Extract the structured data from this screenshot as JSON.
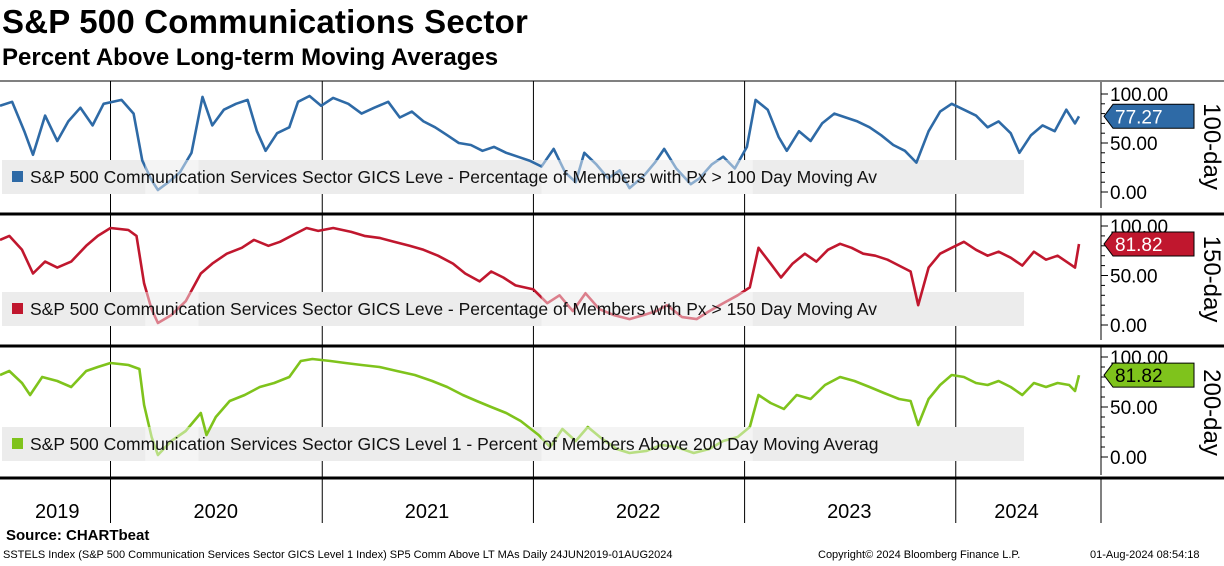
{
  "title": "S&P 500 Communications Sector",
  "subtitle": "Percent Above Long-term Moving Averages",
  "source": "Source: CHARTbeat",
  "footer": {
    "left": "SSTELS Index (S&P 500 Communication Services Sector GICS Level 1 Index) SP5 Comm Above LT MAs  Daily 24JUN2019-01AUG2024",
    "middle": "Copyright© 2024 Bloomberg Finance L.P.",
    "right": "01-Aug-2024 08:54:18"
  },
  "chart_data": {
    "type": "line",
    "x_range": [
      "2019-06-24",
      "2024-08-01"
    ],
    "x_tick_labels": [
      "2019",
      "2020",
      "2021",
      "2022",
      "2023",
      "2024"
    ],
    "panels": [
      {
        "side_label": "100-day",
        "legend": "S&P 500 Communication Services Sector GICS Leve - Percentage of Members with Px > 100 Day Moving Av",
        "color": "#2e6aa6",
        "last_value": 77.27,
        "last_label": "77.27",
        "y_range": [
          0,
          100
        ],
        "y_ticks": [
          "100.00",
          "50.00",
          "0.00"
        ],
        "series": [
          [
            "2019-06-24",
            88
          ],
          [
            "2019-07-15",
            92
          ],
          [
            "2019-08-05",
            62
          ],
          [
            "2019-08-20",
            38
          ],
          [
            "2019-09-10",
            78
          ],
          [
            "2019-10-01",
            52
          ],
          [
            "2019-10-20",
            72
          ],
          [
            "2019-11-10",
            86
          ],
          [
            "2019-12-01",
            68
          ],
          [
            "2019-12-20",
            90
          ],
          [
            "2020-01-20",
            94
          ],
          [
            "2020-02-10",
            80
          ],
          [
            "2020-02-25",
            32
          ],
          [
            "2020-03-12",
            12
          ],
          [
            "2020-03-23",
            2
          ],
          [
            "2020-04-10",
            10
          ],
          [
            "2020-04-30",
            20
          ],
          [
            "2020-05-20",
            40
          ],
          [
            "2020-06-08",
            97
          ],
          [
            "2020-06-25",
            68
          ],
          [
            "2020-07-15",
            84
          ],
          [
            "2020-08-05",
            90
          ],
          [
            "2020-08-25",
            94
          ],
          [
            "2020-09-10",
            62
          ],
          [
            "2020-09-25",
            42
          ],
          [
            "2020-10-15",
            60
          ],
          [
            "2020-11-05",
            66
          ],
          [
            "2020-11-20",
            92
          ],
          [
            "2020-12-10",
            98
          ],
          [
            "2020-12-30",
            88
          ],
          [
            "2021-01-20",
            96
          ],
          [
            "2021-02-15",
            90
          ],
          [
            "2021-03-10",
            80
          ],
          [
            "2021-04-01",
            86
          ],
          [
            "2021-04-25",
            92
          ],
          [
            "2021-05-15",
            76
          ],
          [
            "2021-06-05",
            82
          ],
          [
            "2021-06-25",
            72
          ],
          [
            "2021-07-15",
            66
          ],
          [
            "2021-08-05",
            58
          ],
          [
            "2021-08-25",
            50
          ],
          [
            "2021-09-15",
            48
          ],
          [
            "2021-10-05",
            42
          ],
          [
            "2021-10-25",
            46
          ],
          [
            "2021-11-15",
            40
          ],
          [
            "2021-12-05",
            36
          ],
          [
            "2021-12-25",
            32
          ],
          [
            "2022-01-15",
            26
          ],
          [
            "2022-02-05",
            44
          ],
          [
            "2022-02-25",
            20
          ],
          [
            "2022-03-15",
            10
          ],
          [
            "2022-03-30",
            40
          ],
          [
            "2022-04-20",
            28
          ],
          [
            "2022-05-10",
            14
          ],
          [
            "2022-05-30",
            22
          ],
          [
            "2022-06-16",
            4
          ],
          [
            "2022-07-10",
            16
          ],
          [
            "2022-07-30",
            30
          ],
          [
            "2022-08-15",
            44
          ],
          [
            "2022-09-05",
            24
          ],
          [
            "2022-09-30",
            8
          ],
          [
            "2022-10-15",
            14
          ],
          [
            "2022-11-05",
            28
          ],
          [
            "2022-11-25",
            36
          ],
          [
            "2022-12-15",
            24
          ],
          [
            "2023-01-05",
            46
          ],
          [
            "2023-01-20",
            94
          ],
          [
            "2023-02-10",
            84
          ],
          [
            "2023-03-01",
            56
          ],
          [
            "2023-03-15",
            42
          ],
          [
            "2023-04-05",
            62
          ],
          [
            "2023-04-25",
            52
          ],
          [
            "2023-05-15",
            70
          ],
          [
            "2023-06-05",
            80
          ],
          [
            "2023-06-25",
            76
          ],
          [
            "2023-07-15",
            72
          ],
          [
            "2023-08-05",
            66
          ],
          [
            "2023-08-25",
            58
          ],
          [
            "2023-09-15",
            48
          ],
          [
            "2023-10-05",
            42
          ],
          [
            "2023-10-25",
            30
          ],
          [
            "2023-11-15",
            62
          ],
          [
            "2023-12-05",
            82
          ],
          [
            "2023-12-25",
            90
          ],
          [
            "2024-01-15",
            84
          ],
          [
            "2024-02-05",
            78
          ],
          [
            "2024-02-25",
            66
          ],
          [
            "2024-03-15",
            72
          ],
          [
            "2024-04-05",
            60
          ],
          [
            "2024-04-20",
            40
          ],
          [
            "2024-05-10",
            58
          ],
          [
            "2024-05-30",
            68
          ],
          [
            "2024-06-20",
            62
          ],
          [
            "2024-07-10",
            84
          ],
          [
            "2024-07-25",
            70
          ],
          [
            "2024-08-01",
            77.27
          ]
        ]
      },
      {
        "side_label": "150-day",
        "legend": "S&P 500 Communication Services Sector GICS Leve - Percentage of Members with Px > 150 Day Moving Av",
        "color": "#c0172e",
        "last_value": 81.82,
        "last_label": "81.82",
        "y_range": [
          0,
          100
        ],
        "y_ticks": [
          "100.00",
          "50.00",
          "0.00"
        ],
        "series": [
          [
            "2019-06-24",
            86
          ],
          [
            "2019-07-10",
            90
          ],
          [
            "2019-08-01",
            76
          ],
          [
            "2019-08-20",
            52
          ],
          [
            "2019-09-10",
            64
          ],
          [
            "2019-10-01",
            58
          ],
          [
            "2019-10-25",
            64
          ],
          [
            "2019-11-20",
            80
          ],
          [
            "2019-12-10",
            90
          ],
          [
            "2020-01-01",
            98
          ],
          [
            "2020-02-01",
            96
          ],
          [
            "2020-02-15",
            90
          ],
          [
            "2020-02-28",
            42
          ],
          [
            "2020-03-12",
            16
          ],
          [
            "2020-03-23",
            2
          ],
          [
            "2020-04-15",
            10
          ],
          [
            "2020-05-10",
            24
          ],
          [
            "2020-06-05",
            52
          ],
          [
            "2020-06-25",
            62
          ],
          [
            "2020-07-20",
            72
          ],
          [
            "2020-08-15",
            78
          ],
          [
            "2020-09-05",
            86
          ],
          [
            "2020-09-30",
            80
          ],
          [
            "2020-10-20",
            84
          ],
          [
            "2020-11-15",
            92
          ],
          [
            "2020-12-05",
            98
          ],
          [
            "2020-12-25",
            95
          ],
          [
            "2021-01-20",
            98
          ],
          [
            "2021-02-20",
            94
          ],
          [
            "2021-03-15",
            90
          ],
          [
            "2021-04-10",
            88
          ],
          [
            "2021-05-05",
            84
          ],
          [
            "2021-06-01",
            80
          ],
          [
            "2021-06-25",
            76
          ],
          [
            "2021-07-20",
            70
          ],
          [
            "2021-08-15",
            62
          ],
          [
            "2021-09-05",
            52
          ],
          [
            "2021-09-30",
            44
          ],
          [
            "2021-10-20",
            54
          ],
          [
            "2021-11-10",
            48
          ],
          [
            "2021-12-01",
            40
          ],
          [
            "2022-01-01",
            36
          ],
          [
            "2022-01-25",
            22
          ],
          [
            "2022-02-15",
            30
          ],
          [
            "2022-03-10",
            14
          ],
          [
            "2022-04-01",
            32
          ],
          [
            "2022-04-25",
            16
          ],
          [
            "2022-05-20",
            10
          ],
          [
            "2022-06-16",
            6
          ],
          [
            "2022-07-10",
            10
          ],
          [
            "2022-08-01",
            14
          ],
          [
            "2022-08-20",
            20
          ],
          [
            "2022-09-15",
            8
          ],
          [
            "2022-10-10",
            6
          ],
          [
            "2022-11-01",
            14
          ],
          [
            "2022-11-25",
            22
          ],
          [
            "2022-12-20",
            30
          ],
          [
            "2023-01-10",
            38
          ],
          [
            "2023-01-25",
            78
          ],
          [
            "2023-02-15",
            62
          ],
          [
            "2023-03-05",
            48
          ],
          [
            "2023-03-25",
            62
          ],
          [
            "2023-04-15",
            72
          ],
          [
            "2023-05-05",
            64
          ],
          [
            "2023-05-25",
            76
          ],
          [
            "2023-06-15",
            82
          ],
          [
            "2023-07-05",
            78
          ],
          [
            "2023-07-25",
            72
          ],
          [
            "2023-08-15",
            70
          ],
          [
            "2023-09-05",
            66
          ],
          [
            "2023-09-25",
            60
          ],
          [
            "2023-10-15",
            54
          ],
          [
            "2023-10-28",
            20
          ],
          [
            "2023-11-15",
            58
          ],
          [
            "2023-12-05",
            72
          ],
          [
            "2023-12-25",
            78
          ],
          [
            "2024-01-15",
            84
          ],
          [
            "2024-02-05",
            76
          ],
          [
            "2024-02-25",
            70
          ],
          [
            "2024-03-15",
            74
          ],
          [
            "2024-04-05",
            68
          ],
          [
            "2024-04-25",
            60
          ],
          [
            "2024-05-15",
            74
          ],
          [
            "2024-06-05",
            66
          ],
          [
            "2024-06-25",
            70
          ],
          [
            "2024-07-15",
            62
          ],
          [
            "2024-07-25",
            58
          ],
          [
            "2024-08-01",
            81.82
          ]
        ]
      },
      {
        "side_label": "200-day",
        "legend": "S&P 500 Communication Services Sector GICS Level 1 - Percent of Members Above 200 Day Moving Averag",
        "color": "#7fc31c",
        "last_value": 81.82,
        "last_label": "81.82",
        "y_range": [
          0,
          100
        ],
        "y_ticks": [
          "100.00",
          "50.00",
          "0.00"
        ],
        "series": [
          [
            "2019-06-24",
            82
          ],
          [
            "2019-07-10",
            86
          ],
          [
            "2019-08-01",
            74
          ],
          [
            "2019-08-15",
            62
          ],
          [
            "2019-09-05",
            80
          ],
          [
            "2019-10-01",
            76
          ],
          [
            "2019-10-25",
            70
          ],
          [
            "2019-11-20",
            86
          ],
          [
            "2019-12-10",
            90
          ],
          [
            "2020-01-01",
            94
          ],
          [
            "2020-02-01",
            92
          ],
          [
            "2020-02-20",
            88
          ],
          [
            "2020-02-28",
            52
          ],
          [
            "2020-03-12",
            20
          ],
          [
            "2020-03-23",
            2
          ],
          [
            "2020-04-15",
            16
          ],
          [
            "2020-05-10",
            26
          ],
          [
            "2020-06-05",
            44
          ],
          [
            "2020-06-15",
            22
          ],
          [
            "2020-07-01",
            40
          ],
          [
            "2020-07-25",
            56
          ],
          [
            "2020-08-20",
            62
          ],
          [
            "2020-09-15",
            70
          ],
          [
            "2020-10-10",
            74
          ],
          [
            "2020-11-05",
            80
          ],
          [
            "2020-11-25",
            96
          ],
          [
            "2020-12-15",
            98
          ],
          [
            "2021-01-15",
            96
          ],
          [
            "2021-02-10",
            94
          ],
          [
            "2021-03-10",
            92
          ],
          [
            "2021-04-10",
            90
          ],
          [
            "2021-05-10",
            86
          ],
          [
            "2021-06-10",
            82
          ],
          [
            "2021-07-10",
            76
          ],
          [
            "2021-08-05",
            70
          ],
          [
            "2021-09-01",
            62
          ],
          [
            "2021-09-25",
            56
          ],
          [
            "2021-10-20",
            50
          ],
          [
            "2021-11-15",
            44
          ],
          [
            "2021-12-10",
            36
          ],
          [
            "2022-01-10",
            22
          ],
          [
            "2022-01-30",
            10
          ],
          [
            "2022-02-20",
            28
          ],
          [
            "2022-03-15",
            16
          ],
          [
            "2022-04-05",
            30
          ],
          [
            "2022-04-30",
            18
          ],
          [
            "2022-05-25",
            8
          ],
          [
            "2022-06-16",
            4
          ],
          [
            "2022-07-15",
            6
          ],
          [
            "2022-08-10",
            12
          ],
          [
            "2022-09-05",
            10
          ],
          [
            "2022-10-05",
            4
          ],
          [
            "2022-11-01",
            8
          ],
          [
            "2022-11-25",
            16
          ],
          [
            "2022-12-20",
            20
          ],
          [
            "2023-01-10",
            30
          ],
          [
            "2023-01-25",
            62
          ],
          [
            "2023-02-15",
            54
          ],
          [
            "2023-03-10",
            48
          ],
          [
            "2023-04-01",
            62
          ],
          [
            "2023-04-25",
            58
          ],
          [
            "2023-05-20",
            72
          ],
          [
            "2023-06-15",
            80
          ],
          [
            "2023-07-10",
            76
          ],
          [
            "2023-08-05",
            70
          ],
          [
            "2023-08-30",
            64
          ],
          [
            "2023-09-25",
            58
          ],
          [
            "2023-10-15",
            56
          ],
          [
            "2023-10-28",
            32
          ],
          [
            "2023-11-15",
            58
          ],
          [
            "2023-12-05",
            72
          ],
          [
            "2023-12-25",
            82
          ],
          [
            "2024-01-15",
            80
          ],
          [
            "2024-02-05",
            74
          ],
          [
            "2024-02-25",
            72
          ],
          [
            "2024-03-15",
            76
          ],
          [
            "2024-04-05",
            70
          ],
          [
            "2024-04-25",
            62
          ],
          [
            "2024-05-15",
            74
          ],
          [
            "2024-06-05",
            70
          ],
          [
            "2024-06-25",
            74
          ],
          [
            "2024-07-15",
            72
          ],
          [
            "2024-07-25",
            66
          ],
          [
            "2024-08-01",
            81.82
          ]
        ]
      }
    ],
    "grid": false,
    "legend_position": "bottom-left inside each panel"
  }
}
